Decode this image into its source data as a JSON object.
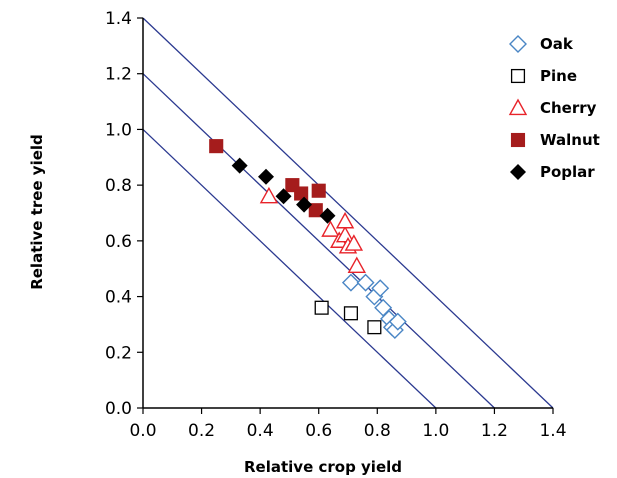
{
  "chart_data": {
    "type": "scatter",
    "xlabel": "Relative crop yield",
    "ylabel": "Relative tree yield",
    "xlim": [
      0,
      1.4
    ],
    "ylim": [
      0,
      1.4
    ],
    "x_ticks": [
      "0.0",
      "0.2",
      "0.4",
      "0.6",
      "0.8",
      "1.0",
      "1.2",
      "1.4"
    ],
    "y_ticks": [
      "0.0",
      "0.2",
      "0.4",
      "0.6",
      "0.8",
      "1.0",
      "1.2",
      "1.4"
    ],
    "legend_position": "top-right",
    "reference_lines": [
      {
        "intercept": 1.0,
        "color": "#2b3990"
      },
      {
        "intercept": 1.2,
        "color": "#2b3990"
      },
      {
        "intercept": 1.4,
        "color": "#2b3990"
      }
    ],
    "series": [
      {
        "name": "Oak",
        "marker": "diamond-open",
        "color": "#4a86c5",
        "points": [
          [
            0.71,
            0.45
          ],
          [
            0.76,
            0.45
          ],
          [
            0.79,
            0.4
          ],
          [
            0.81,
            0.43
          ],
          [
            0.82,
            0.36
          ],
          [
            0.84,
            0.32
          ],
          [
            0.85,
            0.29
          ],
          [
            0.86,
            0.28
          ],
          [
            0.87,
            0.31
          ]
        ]
      },
      {
        "name": "Pine",
        "marker": "square-open",
        "color": "#000000",
        "points": [
          [
            0.61,
            0.36
          ],
          [
            0.71,
            0.34
          ],
          [
            0.79,
            0.29
          ]
        ]
      },
      {
        "name": "Cherry",
        "marker": "triangle-open",
        "color": "#e8232a",
        "points": [
          [
            0.43,
            0.76
          ],
          [
            0.64,
            0.64
          ],
          [
            0.67,
            0.6
          ],
          [
            0.69,
            0.62
          ],
          [
            0.69,
            0.67
          ],
          [
            0.7,
            0.58
          ],
          [
            0.72,
            0.59
          ],
          [
            0.73,
            0.51
          ]
        ]
      },
      {
        "name": "Walnut",
        "marker": "square-filled",
        "color": "#a51c1c",
        "points": [
          [
            0.25,
            0.94
          ],
          [
            0.51,
            0.8
          ],
          [
            0.54,
            0.77
          ],
          [
            0.59,
            0.71
          ],
          [
            0.6,
            0.78
          ]
        ]
      },
      {
        "name": "Poplar",
        "marker": "diamond-filled",
        "color": "#000000",
        "points": [
          [
            0.33,
            0.87
          ],
          [
            0.42,
            0.83
          ],
          [
            0.48,
            0.76
          ],
          [
            0.55,
            0.73
          ],
          [
            0.63,
            0.69
          ]
        ]
      }
    ]
  }
}
